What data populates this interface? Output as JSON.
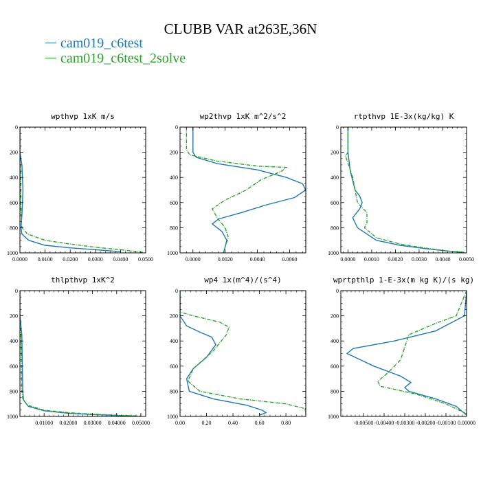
{
  "title": "CLUBB VAR at263E,36N",
  "legend": [
    {
      "name": "cam019_c6test",
      "color": "#1f77b4"
    },
    {
      "name": "cam019_c6test_2solve",
      "color": "#2ca02c"
    }
  ],
  "chart_data": [
    {
      "type": "line",
      "title": "wpthvp  1xK m/s",
      "xlim": [
        0.0,
        0.05
      ],
      "ylim": [
        1000,
        0
      ],
      "yticks": [
        0,
        200,
        400,
        600,
        800,
        1000
      ],
      "xticks": [
        0.0,
        0.01,
        0.02,
        0.03,
        0.04,
        0.05
      ],
      "xtick_labels": [
        "0.0000",
        "0.0100",
        "0.0200",
        "0.0300",
        "0.0400",
        "0.0500"
      ],
      "series": [
        {
          "name": "cam019_c6test",
          "color": "#1f77b4",
          "x": [
            0.0,
            0.0,
            0.0008,
            0.0012,
            0.001,
            0.0008,
            0.0004,
            0.0008,
            0.0035,
            0.01,
            0.02,
            0.03,
            0.04
          ],
          "y": [
            0,
            200,
            300,
            500,
            600,
            700,
            800,
            850,
            900,
            940,
            960,
            975,
            990
          ]
        },
        {
          "name": "cam019_c6test_2solve",
          "color": "#2ca02c",
          "x": [
            0.0,
            0.0,
            0.0003,
            0.0003,
            0.0005,
            0.0008,
            0.003,
            0.01,
            0.02,
            0.03,
            0.04,
            0.049
          ],
          "y": [
            0,
            200,
            400,
            600,
            700,
            800,
            850,
            900,
            930,
            955,
            975,
            995
          ]
        }
      ]
    },
    {
      "type": "line",
      "title": "wp2thvp  1xK m^2/s^2",
      "xlim": [
        -0.0008,
        0.007
      ],
      "ylim": [
        1000,
        0
      ],
      "yticks": [
        0,
        200,
        400,
        600,
        800,
        1000
      ],
      "xticks": [
        0.0,
        0.002,
        0.004,
        0.006
      ],
      "xtick_labels": [
        "0.0000",
        "0.0020",
        "0.0040",
        "0.0060"
      ],
      "series": [
        {
          "name": "cam019_c6test",
          "color": "#1f77b4",
          "x": [
            0.0,
            0.0,
            0.0002,
            0.0015,
            0.004,
            0.0058,
            0.0068,
            0.007,
            0.0063,
            0.0045,
            0.003,
            0.0016,
            0.0012,
            0.0018,
            0.0021,
            0.002,
            0.0019
          ],
          "y": [
            0,
            200,
            240,
            290,
            340,
            400,
            450,
            500,
            560,
            620,
            680,
            730,
            770,
            830,
            900,
            950,
            1000
          ]
        },
        {
          "name": "cam019_c6test_2solve",
          "color": "#2ca02c",
          "x": [
            -0.0004,
            -0.0004,
            -0.0002,
            0.0015,
            0.004,
            0.0058,
            0.0055,
            0.0042,
            0.0033,
            0.002,
            0.0012,
            0.0015,
            0.002,
            0.0022,
            0.002,
            0.0019
          ],
          "y": [
            0,
            180,
            220,
            270,
            310,
            320,
            350,
            420,
            500,
            580,
            650,
            720,
            800,
            880,
            950,
            1000
          ]
        }
      ]
    },
    {
      "type": "line",
      "title": "rtpthvp  1E-3x(kg/kg) K",
      "xlim": [
        -0.0003,
        0.005
      ],
      "ylim": [
        1000,
        0
      ],
      "yticks": [
        0,
        200,
        400,
        600,
        800,
        1000
      ],
      "xticks": [
        0.0,
        0.001,
        0.002,
        0.003,
        0.004,
        0.005
      ],
      "xtick_labels": [
        "0.0000",
        "0.0010",
        "0.0020",
        "0.0030",
        "0.0040",
        "0.0050"
      ],
      "series": [
        {
          "name": "cam019_c6test",
          "color": "#1f77b4",
          "x": [
            0.0,
            0.0,
            0.0001,
            0.0003,
            0.0005,
            0.0006,
            0.0005,
            0.0002,
            0.0004,
            0.0012,
            0.0022,
            0.0032,
            0.0042,
            0.0048
          ],
          "y": [
            0,
            200,
            350,
            500,
            550,
            600,
            650,
            720,
            800,
            900,
            940,
            965,
            985,
            995
          ]
        },
        {
          "name": "cam019_c6test_2solve",
          "color": "#2ca02c",
          "x": [
            0.0,
            0.0,
            -0.0001,
            0.0002,
            0.0004,
            0.0005,
            0.0008,
            0.0008,
            0.0007,
            0.0012,
            0.0022,
            0.0032,
            0.0042,
            0.0049
          ],
          "y": [
            0,
            200,
            230,
            400,
            600,
            620,
            680,
            760,
            800,
            880,
            930,
            960,
            985,
            995
          ]
        }
      ]
    },
    {
      "type": "line",
      "title": "thlpthvp  1xK^2",
      "xlim": [
        0.0,
        0.052
      ],
      "ylim": [
        1000,
        0
      ],
      "yticks": [
        0,
        200,
        400,
        600,
        800,
        1000
      ],
      "xticks": [
        0.01,
        0.02,
        0.03,
        0.04,
        0.05
      ],
      "xtick_labels": [
        "0.01000",
        "0.02000",
        "0.03000",
        "0.04000",
        "0.05000"
      ],
      "series": [
        {
          "name": "cam019_c6test",
          "color": "#1f77b4",
          "x": [
            0.0,
            0.0,
            0.0008,
            0.001,
            0.0012,
            0.0015,
            0.0035,
            0.01,
            0.02,
            0.03,
            0.04,
            0.047
          ],
          "y": [
            0,
            200,
            350,
            600,
            800,
            870,
            920,
            955,
            975,
            985,
            993,
            998
          ]
        },
        {
          "name": "cam019_c6test_2solve",
          "color": "#2ca02c",
          "x": [
            0.0,
            0.0,
            0.0004,
            0.0006,
            0.0008,
            0.0012,
            0.003,
            0.01,
            0.02,
            0.03,
            0.04,
            0.05
          ],
          "y": [
            0,
            200,
            350,
            600,
            800,
            860,
            910,
            950,
            970,
            982,
            990,
            997
          ]
        }
      ]
    },
    {
      "type": "line",
      "title": "wp4  1x(m^4)/(s^4)",
      "xlim": [
        0.0,
        0.95
      ],
      "ylim": [
        1000,
        0
      ],
      "yticks": [
        0,
        200,
        400,
        600,
        800,
        1000
      ],
      "xticks": [
        0.0,
        0.2,
        0.4,
        0.6,
        0.8
      ],
      "xtick_labels": [
        "0.00",
        "0.20",
        "0.40",
        "0.60",
        "0.80"
      ],
      "series": [
        {
          "name": "cam019_c6test",
          "color": "#1f77b4",
          "x": [
            0.0,
            0.0,
            0.05,
            0.15,
            0.24,
            0.27,
            0.2,
            0.1,
            0.05,
            0.07,
            0.25,
            0.5,
            0.62,
            0.65,
            0.6
          ],
          "y": [
            0,
            200,
            280,
            330,
            370,
            430,
            530,
            620,
            700,
            800,
            860,
            910,
            950,
            970,
            990
          ]
        },
        {
          "name": "cam019_c6test_2solve",
          "color": "#2ca02c",
          "x": [
            0.0,
            0.0,
            0.1,
            0.3,
            0.37,
            0.35,
            0.25,
            0.1,
            0.06,
            0.15,
            0.45,
            0.8,
            0.95,
            0.95
          ],
          "y": [
            0,
            170,
            200,
            250,
            290,
            350,
            480,
            620,
            720,
            800,
            860,
            900,
            940,
            990
          ]
        }
      ]
    },
    {
      "type": "line",
      "title": "wprtpthlp  1-E-3x(m kg K)/(s kg)",
      "xlim": [
        -0.0061,
        0.0
      ],
      "ylim": [
        1000,
        0
      ],
      "yticks": [
        0,
        200,
        400,
        600,
        800,
        1000
      ],
      "xticks": [
        -0.005,
        -0.004,
        -0.003,
        -0.002,
        -0.001,
        0.0
      ],
      "xtick_labels": [
        "-0.00500",
        "-0.00400",
        "-0.00300",
        "-0.00200",
        "-0.00100",
        "0.00000"
      ],
      "series": [
        {
          "name": "cam019_c6test",
          "color": "#1f77b4",
          "x": [
            0.0,
            -0.0001,
            -0.0015,
            -0.0035,
            -0.0055,
            -0.0058,
            -0.0045,
            -0.0032,
            -0.0027,
            -0.003,
            -0.0028,
            -0.0015,
            -0.0005,
            0.0
          ],
          "y": [
            0,
            200,
            320,
            400,
            460,
            500,
            600,
            680,
            730,
            770,
            800,
            860,
            920,
            990
          ]
        },
        {
          "name": "cam019_c6test_2solve",
          "color": "#2ca02c",
          "x": [
            0.0,
            -0.0005,
            -0.0015,
            -0.0028,
            -0.003,
            -0.0032,
            -0.0038,
            -0.0043,
            -0.0042,
            -0.0025,
            -0.001,
            0.0
          ],
          "y": [
            0,
            200,
            260,
            350,
            450,
            550,
            650,
            720,
            760,
            820,
            900,
            980
          ]
        }
      ]
    }
  ]
}
